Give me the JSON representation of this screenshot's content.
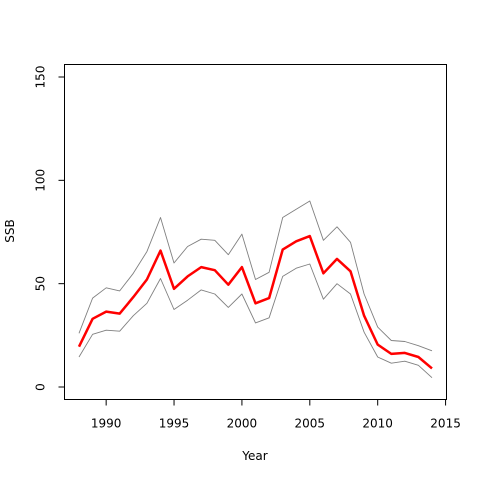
{
  "chart_data": {
    "type": "line",
    "title": "",
    "xlabel": "Year",
    "ylabel": "SSB",
    "xlim": [
      1988,
      2015
    ],
    "ylim": [
      -5,
      155
    ],
    "x_ticks": [
      1990,
      1995,
      2000,
      2005,
      2010,
      2015
    ],
    "y_ticks": [
      0,
      50,
      100,
      150
    ],
    "x_tick_labels": [
      "1990",
      "1995",
      "2000",
      "2005",
      "2010",
      "2015"
    ],
    "y_tick_labels": [
      "0",
      "50",
      "100",
      "150"
    ],
    "grid": false,
    "x": [
      1988,
      1989,
      1990,
      1991,
      1992,
      1993,
      1994,
      1995,
      1996,
      1997,
      1998,
      1999,
      2000,
      2001,
      2002,
      2003,
      2004,
      2005,
      2006,
      2007,
      2008,
      2009,
      2010,
      2011,
      2012,
      2013,
      2014
    ],
    "series": [
      {
        "role": "estimate",
        "color": "#ff0000",
        "values": [
          19.5,
          33,
          36.5,
          35.5,
          43.5,
          52,
          66,
          47.5,
          53.5,
          58,
          56.5,
          49.5,
          58,
          40.5,
          43,
          66.5,
          70.5,
          73,
          55,
          62,
          56,
          34.5,
          20.5,
          16,
          16.5,
          14.5,
          9
        ]
      },
      {
        "role": "upper",
        "color": "#808080",
        "values": [
          26,
          43,
          48,
          46.5,
          55,
          65.5,
          82,
          60,
          68,
          71.5,
          71,
          64,
          74,
          52,
          55.5,
          82,
          86,
          90,
          71,
          77.5,
          70,
          45,
          29,
          22.5,
          22,
          20,
          17.5
        ]
      },
      {
        "role": "lower",
        "color": "#808080",
        "values": [
          14.5,
          25.5,
          27.5,
          27,
          34.5,
          40.5,
          52.5,
          37.5,
          42,
          47,
          45,
          38.5,
          45,
          31,
          33.5,
          53.5,
          57.5,
          59.5,
          42.5,
          50,
          45,
          26.5,
          14.5,
          11.5,
          12.5,
          10.5,
          4.5
        ]
      }
    ]
  }
}
